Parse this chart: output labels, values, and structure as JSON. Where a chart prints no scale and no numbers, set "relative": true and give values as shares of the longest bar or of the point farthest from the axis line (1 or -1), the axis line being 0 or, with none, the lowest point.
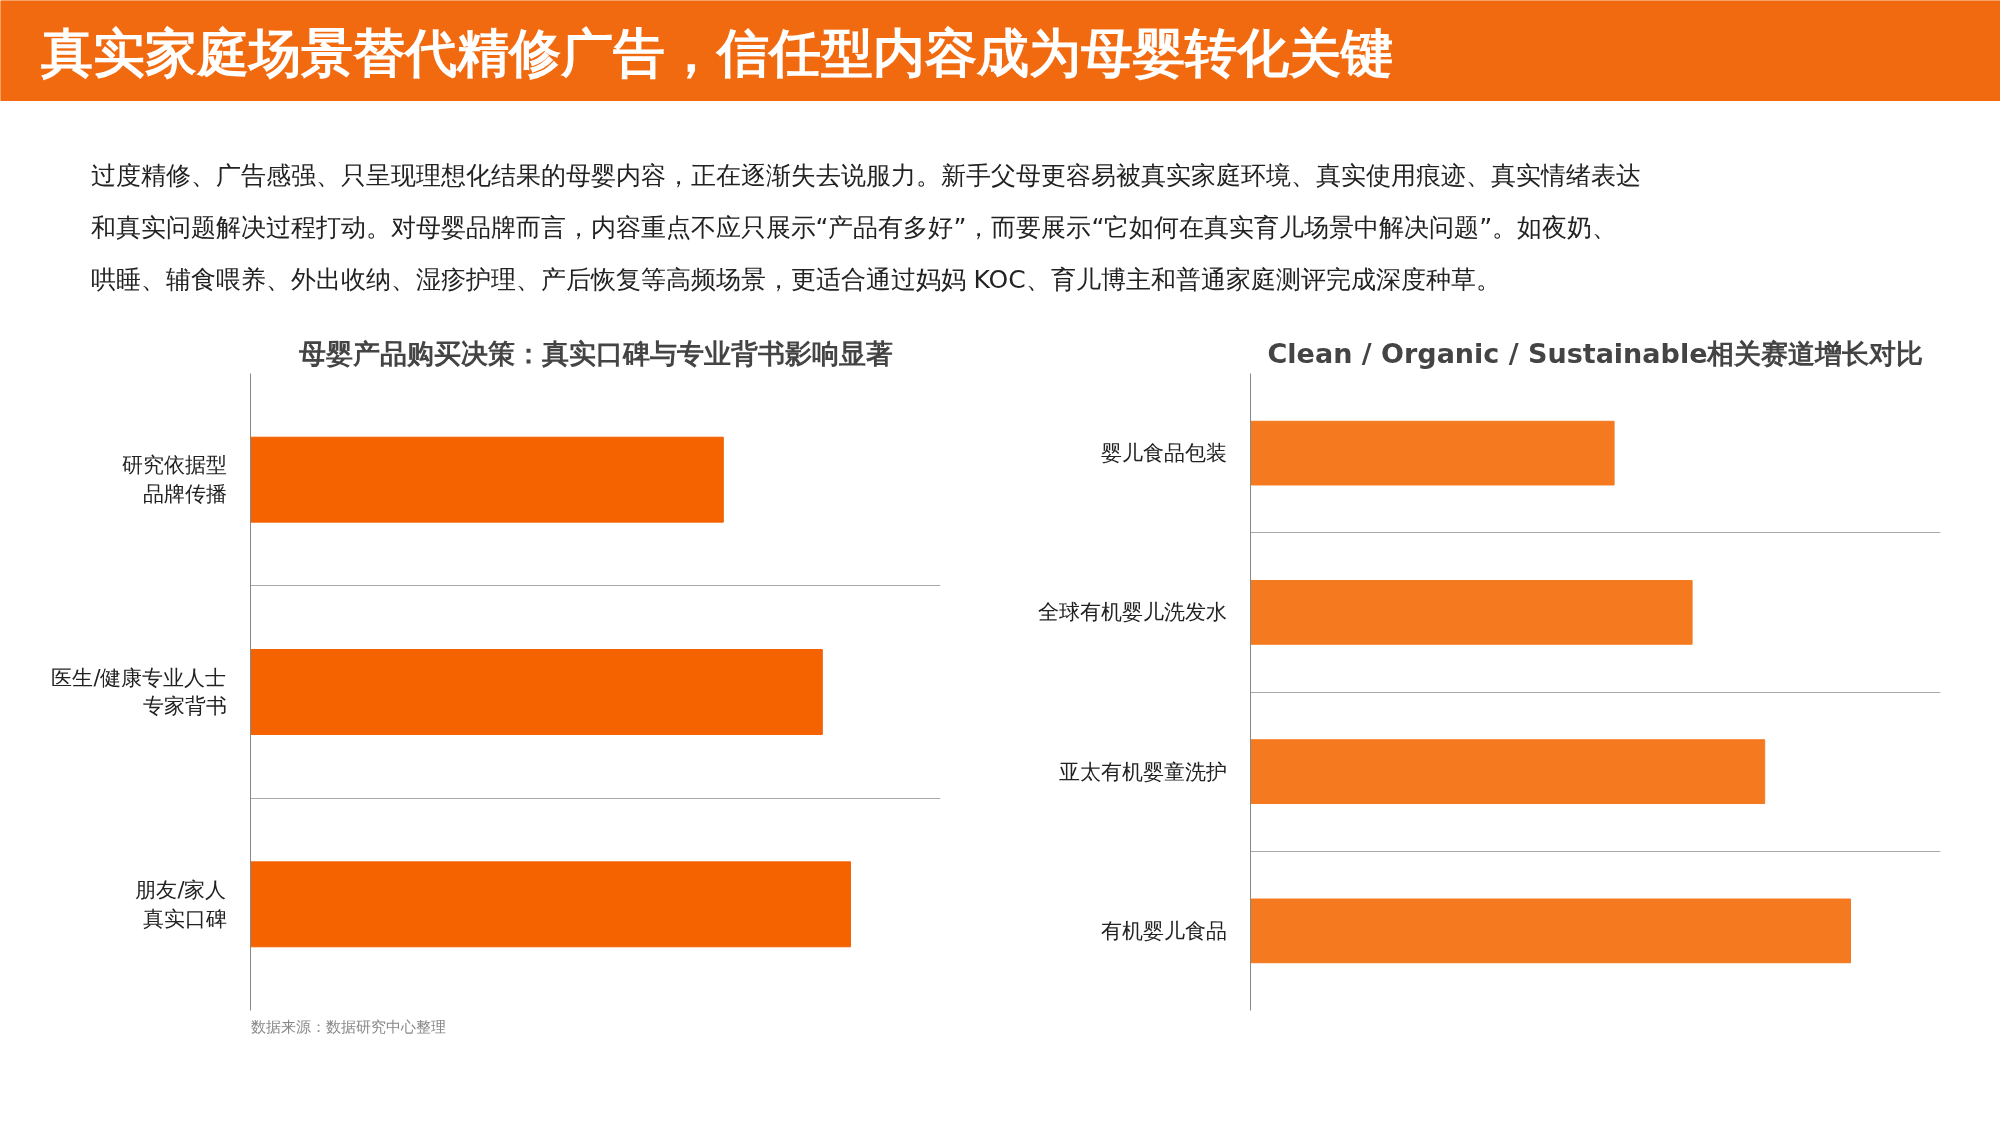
{
  "chart_data": [
    {
      "type": "other",
      "title": "真实家庭场景替代精修广告，信任型内容成为母婴转化关键",
      "color": "#f26a10",
      "annotations": [
        "过度精修、广告感强、只呈现理想化结果的母婴内容，正在逐渐失去说服力。新手父母更容易被真实家庭环境、真实使用痕迹、真实情绪表达",
        "和真实问题解决过程打动。对母婴品牌而言，内容重点不应只展示“产品有多好”，而要展示“它如何在真实育儿场景中解决问题”。如夜奶、",
        "哄睡、辅食喂养、外出收纳、湿疹护理、产后恢复等高频场景，更适合通过妈妈 KOC、育儿博主和普通家庭测评完成深度种草。"
      ]
    },
    {
      "type": "bar",
      "orientation": "horizontal",
      "relative": true,
      "grid": "y",
      "color": "#f56200",
      "title": "母婴产品购买决策：真实口碑与专业背书影响显著",
      "categories": [
        "研究依据型品牌传播",
        "医生/健康专业人士专家背书",
        "朋友/家人真实口碑"
      ],
      "values": [
        0.788,
        0.953,
        1
      ],
      "annotations": [
        "数据来源：数据研究中心整理"
      ]
    },
    {
      "type": "bar",
      "orientation": "horizontal",
      "relative": true,
      "grid": "y",
      "color": "#f5791f",
      "title": "Clean / Organic / Sustainable相关赛道增长对比",
      "categories": [
        "婴儿食品包装",
        "全球有机婴儿洗发水",
        "亚太有机婴童洗护",
        "有机婴儿食品"
      ],
      "values": [
        0.606,
        0.736,
        0.857,
        1
      ]
    }
  ]
}
